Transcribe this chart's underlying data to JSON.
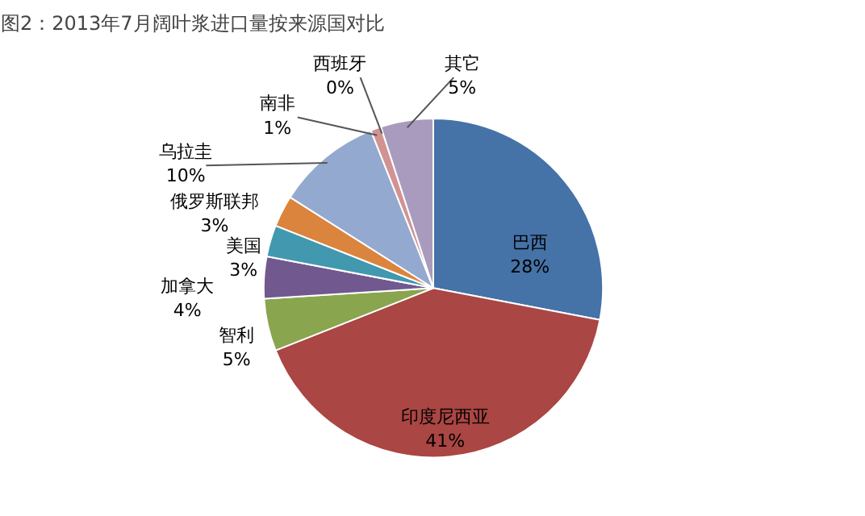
{
  "chart_data": {
    "type": "pie",
    "title": "图2：2013年7月阔叶浆进口量按来源国对比",
    "categories": [
      "巴西",
      "印度尼西亚",
      "智利",
      "加拿大",
      "美国",
      "俄罗斯联邦",
      "乌拉圭",
      "南非",
      "西班牙",
      "其它"
    ],
    "values": [
      28,
      41,
      5,
      4,
      3,
      3,
      10,
      1,
      0,
      5
    ],
    "value_labels": [
      "28%",
      "41%",
      "5%",
      "4%",
      "3%",
      "3%",
      "10%",
      "1%",
      "0%",
      "5%"
    ],
    "colors": [
      "#4572a7",
      "#aa4643",
      "#89a54e",
      "#71588f",
      "#4198af",
      "#db843d",
      "#93a9cf",
      "#d19392",
      "#b9cd96",
      "#a99bbd"
    ]
  }
}
